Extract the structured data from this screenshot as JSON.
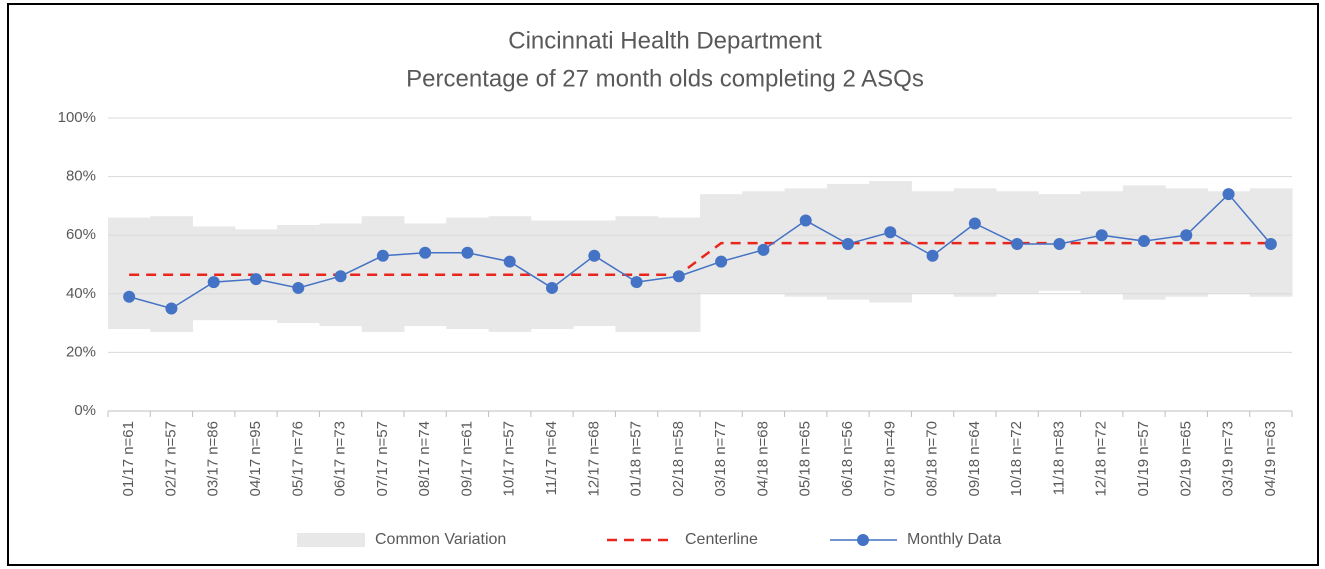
{
  "chart_data": {
    "type": "control",
    "title": "Cincinnati Health Department",
    "subtitle": "Percentage of 27 month olds completing 2 ASQs",
    "categories": [
      "01/17 n=61",
      "02/17 n=57",
      "03/17 n=86",
      "04/17 n=95",
      "05/17 n=76",
      "06/17 n=73",
      "07/17 n=57",
      "08/17 n=74",
      "09/17 n=61",
      "10/17 n=57",
      "11/17 n=64",
      "12/17 n=68",
      "01/18 n=57",
      "02/18 n=58",
      "03/18 n=77",
      "04/18 n=68",
      "05/18 n=65",
      "06/18 n=56",
      "07/18 n=49",
      "08/18 n=70",
      "09/18 n=64",
      "10/18 n=72",
      "11/18 n=83",
      "12/18 n=72",
      "01/19 n=57",
      "02/19 n=65",
      "03/19 n=73",
      "04/19 n=63"
    ],
    "series": [
      {
        "name": "Common Variation",
        "color": "#e8e8e8",
        "lower": [
          28,
          27,
          31,
          31,
          30,
          29,
          27,
          29,
          28,
          27,
          28,
          29,
          27,
          27,
          40,
          40,
          39,
          38,
          37,
          40,
          39,
          40,
          41,
          40,
          38,
          39,
          40,
          39
        ],
        "upper": [
          66,
          66.5,
          63,
          62,
          63.5,
          64,
          66.5,
          64,
          66,
          66.5,
          65,
          65,
          66.5,
          66,
          74,
          75,
          76,
          77.5,
          78.5,
          75,
          76,
          75,
          74,
          75,
          77,
          76,
          75,
          76
        ]
      },
      {
        "name": "Centerline",
        "color": "#e8261e",
        "values": [
          46.5,
          46.5,
          46.5,
          46.5,
          46.5,
          46.5,
          46.5,
          46.5,
          46.5,
          46.5,
          46.5,
          46.5,
          46.5,
          46.5,
          57.3,
          57.3,
          57.3,
          57.3,
          57.3,
          57.3,
          57.3,
          57.3,
          57.3,
          57.3,
          57.3,
          57.3,
          57.3,
          57.3
        ]
      },
      {
        "name": "Monthly Data",
        "color": "#4472c4",
        "values": [
          39,
          35,
          44,
          45,
          42,
          46,
          53,
          54,
          54,
          51,
          42,
          53,
          44,
          46,
          51,
          55,
          65,
          57,
          61,
          53,
          64,
          57,
          57,
          60,
          58,
          60,
          74,
          57
        ]
      }
    ],
    "ylim": [
      0,
      100
    ],
    "yticks": [
      {
        "value": 0,
        "label": "0%"
      },
      {
        "value": 20,
        "label": "20%"
      },
      {
        "value": 40,
        "label": "40%"
      },
      {
        "value": 60,
        "label": "60%"
      },
      {
        "value": 80,
        "label": "80%"
      },
      {
        "value": 100,
        "label": "100%"
      }
    ],
    "grid": true,
    "legend": "bottom"
  }
}
